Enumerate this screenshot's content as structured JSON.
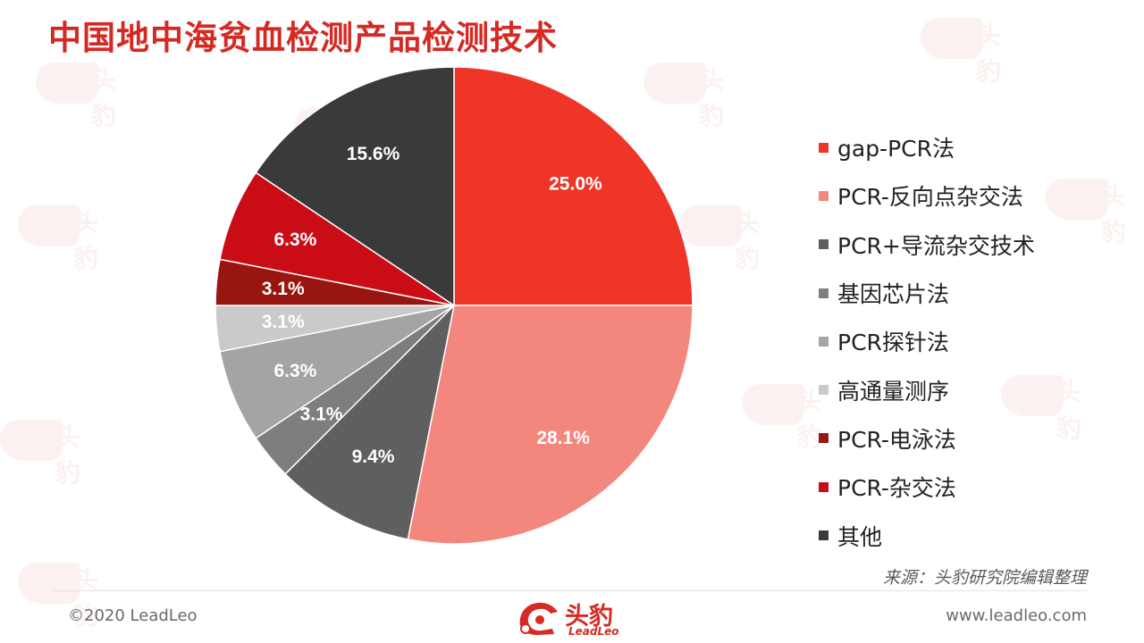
{
  "title": "中国地中海贫血检测产品检测技术",
  "source": "来源：头豹研究院编辑整理",
  "footer": {
    "copyright": "©2020 LeadLeo",
    "website": "www.leadleo.com",
    "logo_cn": "头豹",
    "logo_en": "LeadLeo"
  },
  "chart_data": {
    "type": "pie",
    "title": "中国地中海贫血检测产品检测技术",
    "legend_position": "right",
    "slices": [
      {
        "name": "gap-PCR法",
        "value": 25.0,
        "label": "25.0%",
        "color": "#ee3527"
      },
      {
        "name": "PCR-反向点杂交法",
        "value": 28.1,
        "label": "28.1%",
        "color": "#f4877d"
      },
      {
        "name": "PCR+导流杂交技术",
        "value": 9.4,
        "label": "9.4%",
        "color": "#5f5f5f"
      },
      {
        "name": "基因芯片法",
        "value": 3.1,
        "label": "3.1%",
        "color": "#7e7e7e"
      },
      {
        "name": "PCR探针法",
        "value": 6.3,
        "label": "6.3%",
        "color": "#a4a4a4"
      },
      {
        "name": "高通量测序",
        "value": 3.1,
        "label": "3.1%",
        "color": "#cacaca"
      },
      {
        "name": "PCR-电泳法",
        "value": 3.1,
        "label": "3.1%",
        "color": "#981510"
      },
      {
        "name": "PCR-杂交法",
        "value": 6.3,
        "label": "6.3%",
        "color": "#c90c15"
      },
      {
        "name": "其他",
        "value": 15.6,
        "label": "15.6%",
        "color": "#3b3a3b"
      }
    ]
  }
}
